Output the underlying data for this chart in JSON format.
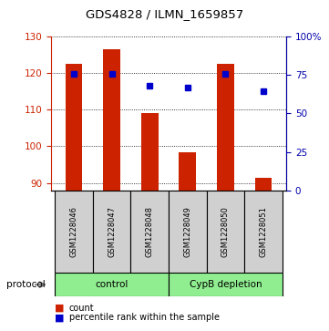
{
  "title": "GDS4828 / ILMN_1659857",
  "samples": [
    "GSM1228046",
    "GSM1228047",
    "GSM1228048",
    "GSM1228049",
    "GSM1228050",
    "GSM1228051"
  ],
  "counts": [
    122.5,
    126.5,
    109.0,
    98.5,
    122.5,
    91.5
  ],
  "percentile_ranks": [
    75.5,
    75.5,
    68.0,
    66.5,
    75.5,
    64.5
  ],
  "ylim_left": [
    88,
    130
  ],
  "ylim_right": [
    0,
    100
  ],
  "yticks_left": [
    90,
    100,
    110,
    120,
    130
  ],
  "yticks_right": [
    0,
    25,
    50,
    75,
    100
  ],
  "ytick_labels_right": [
    "0",
    "25",
    "50",
    "75",
    "100%"
  ],
  "bar_color": "#cc2200",
  "dot_color": "#0000cc",
  "control_color": "#90ee90",
  "gray_color": "#d0d0d0",
  "protocol_groups": [
    {
      "label": "control",
      "start": 0,
      "end": 3
    },
    {
      "label": "CypB depletion",
      "start": 3,
      "end": 6
    }
  ],
  "bar_base": 88,
  "left_axis_color": "#cc2200",
  "right_axis_color": "#0000aa"
}
